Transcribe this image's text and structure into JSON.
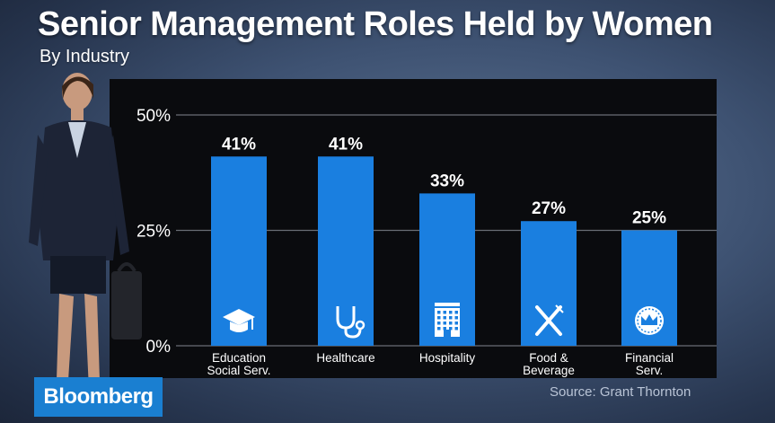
{
  "header": {
    "title": "Senior Management Roles Held by Women",
    "subtitle": "By Industry"
  },
  "footer": {
    "source": "Source: Grant Thornton",
    "logo": "Bloomberg"
  },
  "colors": {
    "bar": "#1a7fe0",
    "panel": "#0a0b0e",
    "grid": "#6a6e76",
    "text": "#ffffff"
  },
  "chart_data": {
    "type": "bar",
    "title": "Senior Management Roles Held by Women",
    "subtitle": "By Industry",
    "categories": [
      [
        "Education",
        "Social Serv."
      ],
      [
        "Healthcare"
      ],
      [
        "Hospitality"
      ],
      [
        "Food &",
        "Beverage"
      ],
      [
        "Financial",
        "Serv."
      ]
    ],
    "values": [
      41,
      41,
      33,
      27,
      25
    ],
    "value_labels": [
      "41%",
      "41%",
      "33%",
      "27%",
      "25%"
    ],
    "icons": [
      "graduation-cap-icon",
      "stethoscope-icon",
      "hotel-icon",
      "fork-knife-icon",
      "crown-badge-icon"
    ],
    "ylim": [
      0,
      50
    ],
    "yticks": [
      0,
      25,
      50
    ],
    "ytick_labels": [
      "0%",
      "25%",
      "50%"
    ],
    "grid": true,
    "legend": "none"
  }
}
